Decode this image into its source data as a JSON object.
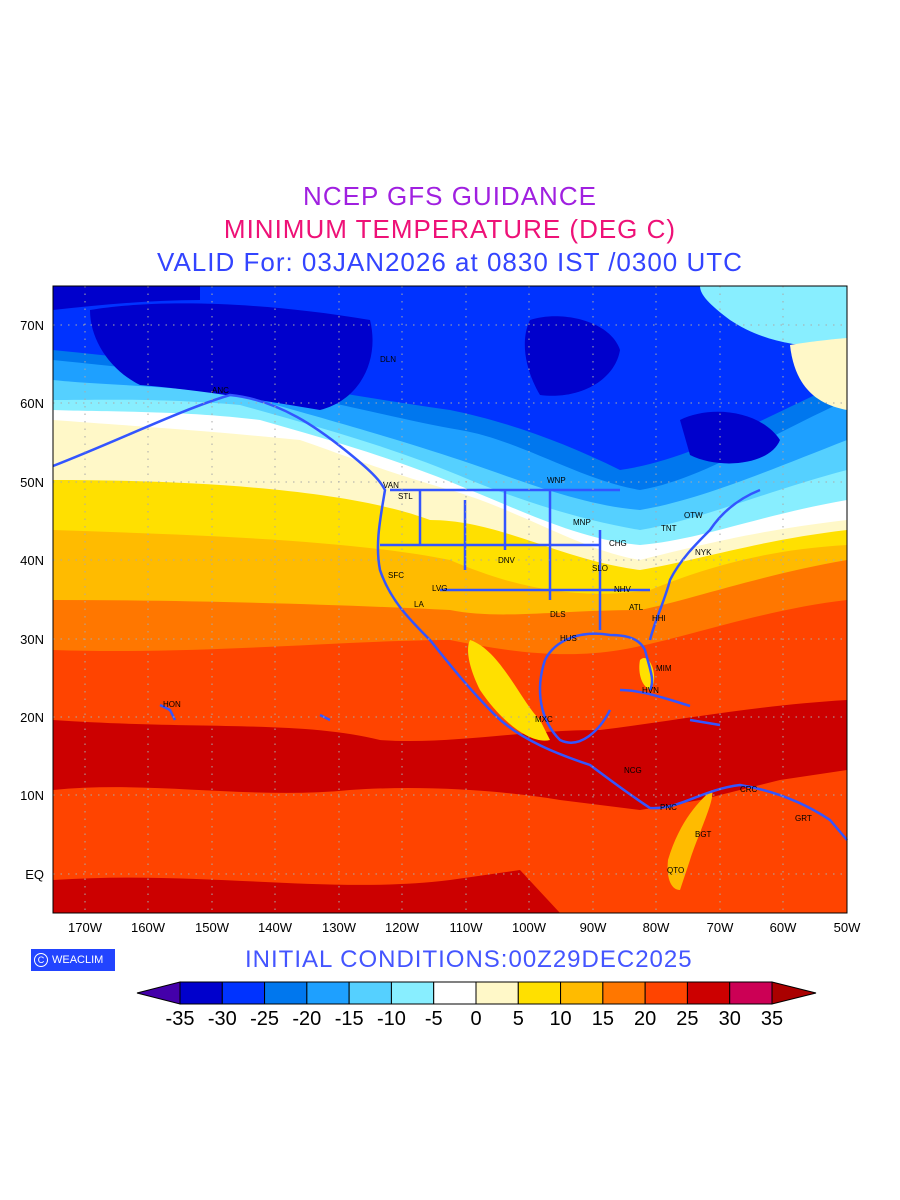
{
  "title": {
    "line1": "NCEP GFS GUIDANCE",
    "line2": "MINIMUM TEMPERATURE (DEG C)",
    "line3": "VALID For: 03JAN2026 at 0830 IST /0300 UTC"
  },
  "footer": {
    "logo_symbol": "C",
    "logo_text": "WEACLIM",
    "initial_conditions": "INITIAL  CONDITIONS:00Z29DEC2025"
  },
  "axes": {
    "x_ticks": [
      "170W",
      "160W",
      "150W",
      "140W",
      "130W",
      "120W",
      "110W",
      "100W",
      "90W",
      "80W",
      "70W",
      "60W",
      "50W"
    ],
    "y_ticks": [
      "70N",
      "60N",
      "50N",
      "40N",
      "30N",
      "20N",
      "10N",
      "EQ"
    ]
  },
  "stations": {
    "anc": "ANC",
    "dln": "DLN",
    "van": "VAN",
    "stl": "STL",
    "wnp": "WNP",
    "mnp": "MNP",
    "otw": "OTW",
    "tnt": "TNT",
    "chg": "CHG",
    "nyk": "NYK",
    "dnv": "DNV",
    "slo": "SLO",
    "sfc": "SFC",
    "lvg": "LVG",
    "nhv": "NHV",
    "la": "LA",
    "atl": "ATL",
    "dls": "DLS",
    "hhi": "HHI",
    "hus": "HUS",
    "mim": "MIM",
    "hvn": "HVN",
    "hon": "HON",
    "mxc": "MXC",
    "ncg": "NCG",
    "crc": "CRC",
    "pnc": "PNC",
    "grt": "GRT",
    "bgt": "BGT",
    "qto": "QTO"
  },
  "colorbar": {
    "unit": "DEG C",
    "labels": [
      "-35",
      "-30",
      "-25",
      "-20",
      "-15",
      "-10",
      "-5",
      "0",
      "5",
      "10",
      "15",
      "20",
      "25",
      "30",
      "35"
    ],
    "colors": [
      "#0000cc",
      "#0033ff",
      "#0077ee",
      "#1ea0ff",
      "#55d0ff",
      "#88eeff",
      "#ffffff",
      "#fff8c8",
      "#ffe000",
      "#ffbb00",
      "#ff7700",
      "#ff4400",
      "#cc0000",
      "#cc0055"
    ],
    "below_color": "#4400aa",
    "above_color": "#aa0000"
  }
}
